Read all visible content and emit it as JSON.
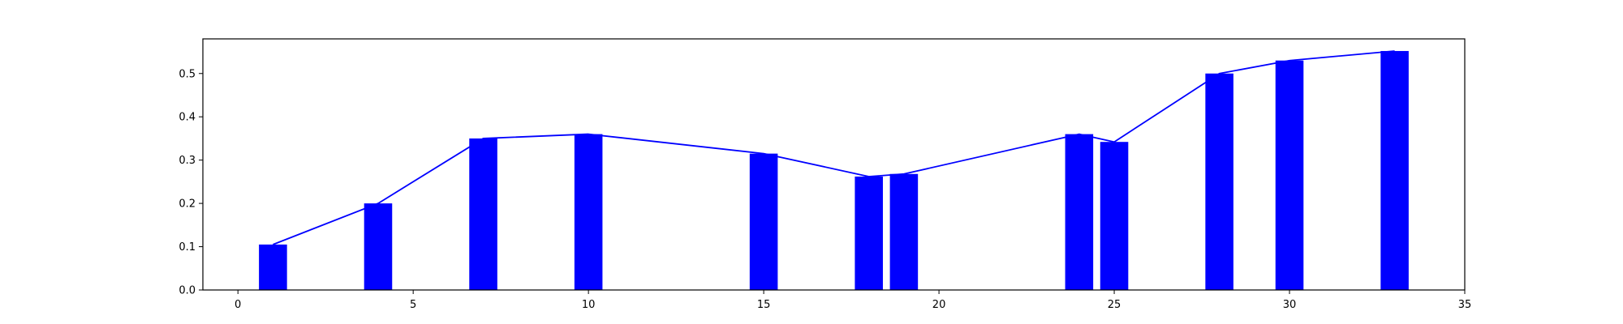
{
  "chart_data": {
    "type": "bar",
    "title": "",
    "xlabel": "",
    "ylabel": "",
    "xlim": [
      -1,
      35
    ],
    "ylim": [
      0,
      0.58
    ],
    "grid": false,
    "legend": "none",
    "xticks": [
      "0",
      "5",
      "10",
      "15",
      "20",
      "25",
      "30",
      "35"
    ],
    "yticks": [
      "0.0",
      "0.1",
      "0.2",
      "0.3",
      "0.4",
      "0.5"
    ],
    "bar_width": 0.8,
    "x": [
      1,
      4,
      7,
      10,
      15,
      18,
      19,
      24,
      25,
      28,
      30,
      33
    ],
    "values": [
      0.105,
      0.2,
      0.35,
      0.36,
      0.315,
      0.262,
      0.268,
      0.36,
      0.342,
      0.5,
      0.53,
      0.552
    ],
    "series": [
      {
        "type": "bar",
        "values": [
          0.105,
          0.2,
          0.35,
          0.36,
          0.315,
          0.262,
          0.268,
          0.36,
          0.342,
          0.5,
          0.53,
          0.552
        ],
        "color": "#0000ff"
      },
      {
        "type": "line",
        "values": [
          0.105,
          0.2,
          0.35,
          0.36,
          0.315,
          0.262,
          0.268,
          0.36,
          0.342,
          0.5,
          0.53,
          0.552
        ],
        "color": "#0000ff"
      }
    ]
  },
  "colors": {
    "bar": "#0000ff",
    "line": "#0000ff",
    "axes": "#000000",
    "background": "#ffffff"
  }
}
